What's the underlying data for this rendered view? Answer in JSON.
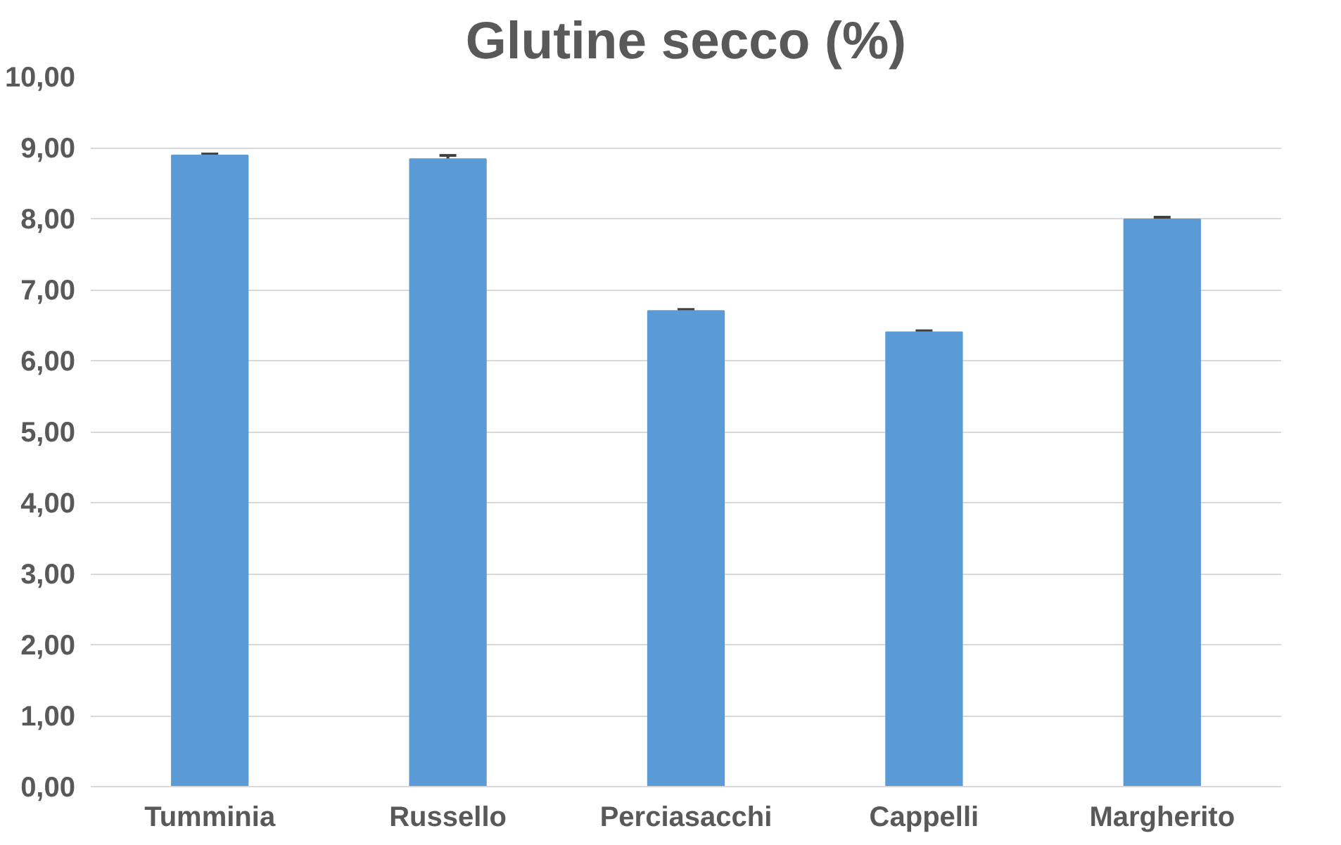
{
  "chart_data": {
    "type": "bar",
    "title": "Glutine secco (%)",
    "categories": [
      "Tumminia",
      "Russello",
      "Perciasacchi",
      "Cappelli",
      "Margherito"
    ],
    "values": [
      8.89,
      8.84,
      6.7,
      6.4,
      7.99
    ],
    "errors": [
      0.02,
      0.05,
      0.02,
      0.02,
      0.03
    ],
    "color": "#5b9bd5",
    "ylim": [
      0,
      10
    ],
    "yticks": [
      {
        "value": 0,
        "label": "0,00"
      },
      {
        "value": 1,
        "label": "1,00"
      },
      {
        "value": 2,
        "label": "2,00"
      },
      {
        "value": 3,
        "label": "3,00"
      },
      {
        "value": 4,
        "label": "4,00"
      },
      {
        "value": 5,
        "label": "5,00"
      },
      {
        "value": 6,
        "label": "6,00"
      },
      {
        "value": 7,
        "label": "7,00"
      },
      {
        "value": 8,
        "label": "8,00"
      },
      {
        "value": 9,
        "label": "9,00"
      },
      {
        "value": 10,
        "label": "10,00"
      }
    ],
    "grid": "y"
  }
}
